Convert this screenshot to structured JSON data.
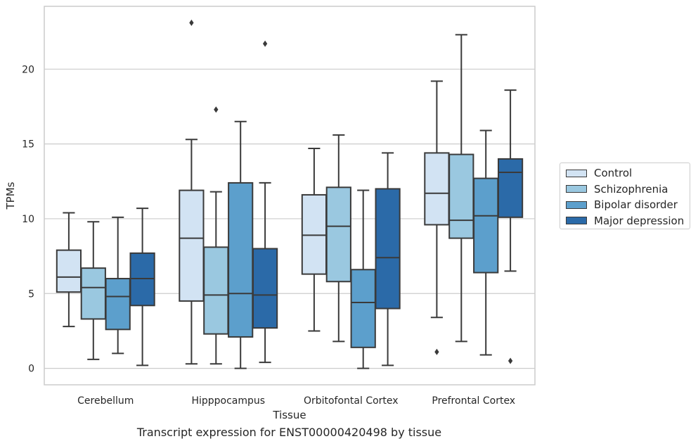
{
  "chart_data": {
    "type": "box",
    "caption": "Transcript expression for ENST00000420498 by tissue",
    "xlabel": "Tissue",
    "ylabel": "TPMs",
    "ylim": [
      -1.1,
      24.2
    ],
    "yticks": [
      0,
      5,
      10,
      15,
      20
    ],
    "grid": "horizontal",
    "legend_position": "right",
    "categories": [
      "Cerebellum",
      "Hipppocampus",
      "Orbitofontal Cortex",
      "Prefrontal Cortex"
    ],
    "series": [
      {
        "name": "Control",
        "color": "#d2e3f3",
        "boxes": [
          {
            "whisker_low": 2.8,
            "q1": 5.1,
            "median": 6.1,
            "q3": 7.9,
            "whisker_high": 10.4,
            "outliers": []
          },
          {
            "whisker_low": 0.3,
            "q1": 4.5,
            "median": 8.7,
            "q3": 11.9,
            "whisker_high": 15.3,
            "outliers": [
              23.1
            ]
          },
          {
            "whisker_low": 2.5,
            "q1": 6.3,
            "median": 8.9,
            "q3": 11.6,
            "whisker_high": 14.7,
            "outliers": []
          },
          {
            "whisker_low": 3.4,
            "q1": 9.6,
            "median": 11.7,
            "q3": 14.4,
            "whisker_high": 19.2,
            "outliers": [
              1.1
            ]
          }
        ]
      },
      {
        "name": "Schizophrenia",
        "color": "#9ac8e0",
        "boxes": [
          {
            "whisker_low": 0.6,
            "q1": 3.3,
            "median": 5.4,
            "q3": 6.7,
            "whisker_high": 9.8,
            "outliers": []
          },
          {
            "whisker_low": 0.3,
            "q1": 2.3,
            "median": 4.9,
            "q3": 8.1,
            "whisker_high": 11.8,
            "outliers": [
              17.3
            ]
          },
          {
            "whisker_low": 1.8,
            "q1": 5.8,
            "median": 9.5,
            "q3": 12.1,
            "whisker_high": 15.6,
            "outliers": []
          },
          {
            "whisker_low": 1.8,
            "q1": 8.7,
            "median": 9.9,
            "q3": 14.3,
            "whisker_high": 22.3,
            "outliers": []
          }
        ]
      },
      {
        "name": "Bipolar disorder",
        "color": "#5c9fcc",
        "boxes": [
          {
            "whisker_low": 1.0,
            "q1": 2.6,
            "median": 4.8,
            "q3": 6.0,
            "whisker_high": 10.1,
            "outliers": []
          },
          {
            "whisker_low": 0.0,
            "q1": 2.1,
            "median": 5.0,
            "q3": 12.4,
            "whisker_high": 16.5,
            "outliers": []
          },
          {
            "whisker_low": 0.0,
            "q1": 1.4,
            "median": 4.4,
            "q3": 6.6,
            "whisker_high": 11.9,
            "outliers": []
          },
          {
            "whisker_low": 0.9,
            "q1": 6.4,
            "median": 10.2,
            "q3": 12.7,
            "whisker_high": 15.9,
            "outliers": []
          }
        ]
      },
      {
        "name": "Major depression",
        "color": "#2b6aa8",
        "boxes": [
          {
            "whisker_low": 0.2,
            "q1": 4.2,
            "median": 6.0,
            "q3": 7.7,
            "whisker_high": 10.7,
            "outliers": []
          },
          {
            "whisker_low": 0.4,
            "q1": 2.7,
            "median": 4.9,
            "q3": 8.0,
            "whisker_high": 12.4,
            "outliers": [
              21.7
            ]
          },
          {
            "whisker_low": 0.2,
            "q1": 4.0,
            "median": 7.4,
            "q3": 12.0,
            "whisker_high": 14.4,
            "outliers": []
          },
          {
            "whisker_low": 6.5,
            "q1": 10.1,
            "median": 13.1,
            "q3": 14.0,
            "whisker_high": 18.6,
            "outliers": [
              0.5
            ]
          }
        ]
      }
    ]
  }
}
